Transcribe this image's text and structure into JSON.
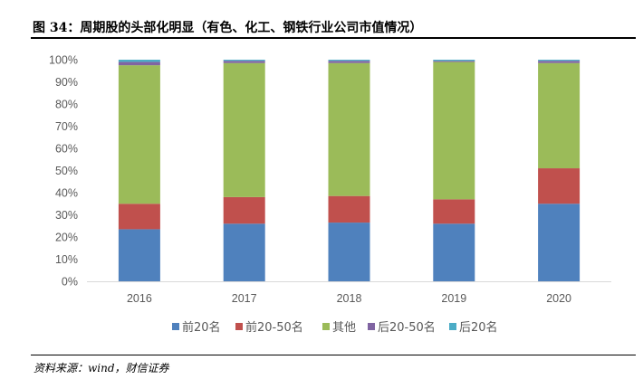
{
  "figure": {
    "title": "图 34：周期股的头部化明显（有色、化工、钢铁行业公司市值情况）",
    "source": "资料来源：wind，财信证券"
  },
  "chart_data": {
    "type": "bar",
    "stacked": true,
    "categories": [
      "2016",
      "2017",
      "2018",
      "2019",
      "2020"
    ],
    "series": [
      {
        "name": "前20名",
        "color": "#4F81BD",
        "values": [
          23.5,
          26.0,
          26.5,
          26.0,
          35.0
        ]
      },
      {
        "name": "前20-50名",
        "color": "#C0504D",
        "values": [
          11.5,
          12.0,
          12.0,
          11.0,
          16.0
        ]
      },
      {
        "name": "其他",
        "color": "#9BBB59",
        "values": [
          62.5,
          60.5,
          60.0,
          62.0,
          47.5
        ]
      },
      {
        "name": "后20-50名",
        "color": "#8064A2",
        "values": [
          1.5,
          1.0,
          1.0,
          0.5,
          1.0
        ]
      },
      {
        "name": "后20名",
        "color": "#4BACC6",
        "values": [
          1.0,
          0.5,
          0.5,
          0.5,
          0.5
        ]
      }
    ],
    "ylim": [
      0,
      100
    ],
    "yticks": [
      "0%",
      "10%",
      "20%",
      "30%",
      "40%",
      "50%",
      "60%",
      "70%",
      "80%",
      "90%",
      "100%"
    ],
    "grid": false,
    "legend": "bottom"
  }
}
